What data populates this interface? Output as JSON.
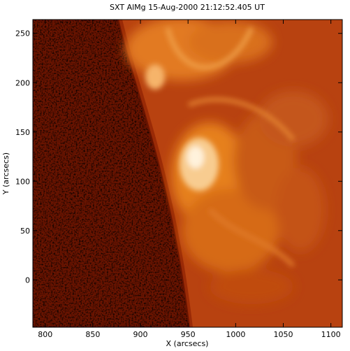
{
  "chart_data": {
    "type": "image",
    "title": "SXT AlMg 15-Aug-2000 21:12:52.405 UT",
    "x_label": "X (arcsecs)",
    "y_label": "Y (arcsecs)",
    "xlim": [
      787,
      1112
    ],
    "ylim": [
      -48,
      264
    ],
    "xticks": [
      800,
      850,
      900,
      950,
      1000,
      1050,
      1100
    ],
    "yticks": [
      0,
      50,
      100,
      150,
      200,
      250
    ]
  }
}
